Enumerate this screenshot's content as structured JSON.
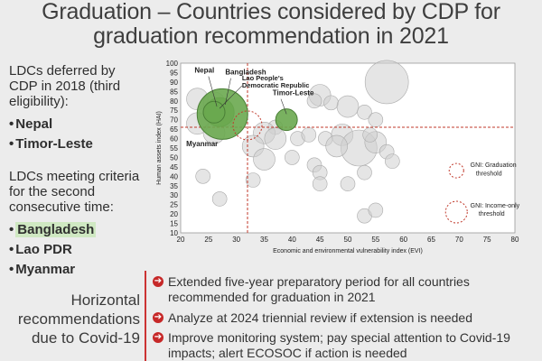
{
  "slide": {
    "title_line1": "Graduation – Countries considered by CDP for",
    "title_line2": "graduation recommendation in 2021"
  },
  "left": {
    "deferred_text": "LDCs deferred by CDP in 2018 (third eligibility):",
    "deferred_list": [
      "Nepal",
      "Timor-Leste"
    ],
    "meeting_text": "LDCs meeting criteria for the second consecutive time:",
    "meeting_list": [
      "Bangladesh",
      "Lao PDR",
      "Myanmar"
    ]
  },
  "horizontal": {
    "title": "Horizontal recommendations due to Covid-19",
    "items": [
      "Extended five-year preparatory period for all countries recommended for graduation in 2021",
      "Analyze at 2024 triennial review if extension is needed",
      "Improve monitoring system; pay special attention to Covid-19 impacts; alert ECOSOC if action is needed"
    ]
  },
  "chart_data": {
    "type": "scatter",
    "xlabel": "Economic and environmental vulnerability index (EVI)",
    "ylabel": "Human assets index (HAI)",
    "xlim": [
      20,
      80
    ],
    "ylim": [
      10,
      100
    ],
    "xticks": [
      20,
      25,
      30,
      35,
      40,
      45,
      50,
      55,
      60,
      65,
      70,
      75,
      80
    ],
    "yticks": [
      10,
      15,
      20,
      25,
      30,
      35,
      40,
      45,
      50,
      55,
      60,
      65,
      70,
      75,
      80,
      85,
      90,
      95,
      100
    ],
    "thresholds": {
      "evi_graduation": 32,
      "hai_graduation": 66
    },
    "legend": [
      {
        "label": "GNI: Graduation threshold",
        "style": "dashed small circle"
      },
      {
        "label": "GNI: Income-only threshold",
        "style": "dashed large circle"
      }
    ],
    "highlight_color": "#6aa84f",
    "threshold_color": "#c0392b",
    "highlighted": [
      {
        "name": "Nepal",
        "x": 27,
        "y": 74,
        "size": 4
      },
      {
        "name": "Bangladesh",
        "x": 27.5,
        "y": 73,
        "size": 7
      },
      {
        "name": "Lao People's Democratic Republic",
        "x": 26,
        "y": 74,
        "size": 3
      },
      {
        "name": "Timor-Leste",
        "x": 39,
        "y": 70,
        "size": 3
      },
      {
        "name": "Myanmar",
        "x": 32,
        "y": 67,
        "size": 4
      }
    ],
    "others": [
      {
        "x": 23,
        "y": 81,
        "size": 3
      },
      {
        "x": 26,
        "y": 79,
        "size": 3
      },
      {
        "x": 23,
        "y": 68,
        "size": 3
      },
      {
        "x": 26,
        "y": 63,
        "size": 3
      },
      {
        "x": 28,
        "y": 70,
        "size": 2
      },
      {
        "x": 57,
        "y": 90,
        "size": 6
      },
      {
        "x": 45,
        "y": 83,
        "size": 3
      },
      {
        "x": 44,
        "y": 80,
        "size": 2
      },
      {
        "x": 47,
        "y": 79,
        "size": 2
      },
      {
        "x": 50,
        "y": 77,
        "size": 3
      },
      {
        "x": 53,
        "y": 74,
        "size": 2
      },
      {
        "x": 55,
        "y": 70,
        "size": 2
      },
      {
        "x": 37,
        "y": 66,
        "size": 2
      },
      {
        "x": 35,
        "y": 63,
        "size": 3
      },
      {
        "x": 37,
        "y": 60,
        "size": 3
      },
      {
        "x": 33,
        "y": 56,
        "size": 3
      },
      {
        "x": 35,
        "y": 49,
        "size": 3
      },
      {
        "x": 41,
        "y": 60,
        "size": 2
      },
      {
        "x": 43,
        "y": 62,
        "size": 2
      },
      {
        "x": 46,
        "y": 60,
        "size": 2
      },
      {
        "x": 49,
        "y": 62,
        "size": 3
      },
      {
        "x": 52,
        "y": 55,
        "size": 5
      },
      {
        "x": 55,
        "y": 58,
        "size": 3
      },
      {
        "x": 57,
        "y": 53,
        "size": 2
      },
      {
        "x": 54,
        "y": 62,
        "size": 2
      },
      {
        "x": 48,
        "y": 56,
        "size": 3
      },
      {
        "x": 44,
        "y": 46,
        "size": 2
      },
      {
        "x": 45,
        "y": 42,
        "size": 2
      },
      {
        "x": 45,
        "y": 36,
        "size": 2
      },
      {
        "x": 50,
        "y": 36,
        "size": 2
      },
      {
        "x": 53,
        "y": 42,
        "size": 2
      },
      {
        "x": 58,
        "y": 48,
        "size": 2
      },
      {
        "x": 24,
        "y": 40,
        "size": 2
      },
      {
        "x": 27,
        "y": 28,
        "size": 2
      },
      {
        "x": 53,
        "y": 19,
        "size": 2
      },
      {
        "x": 55,
        "y": 22,
        "size": 2
      },
      {
        "x": 33,
        "y": 38,
        "size": 2
      },
      {
        "x": 40,
        "y": 50,
        "size": 2
      }
    ]
  }
}
